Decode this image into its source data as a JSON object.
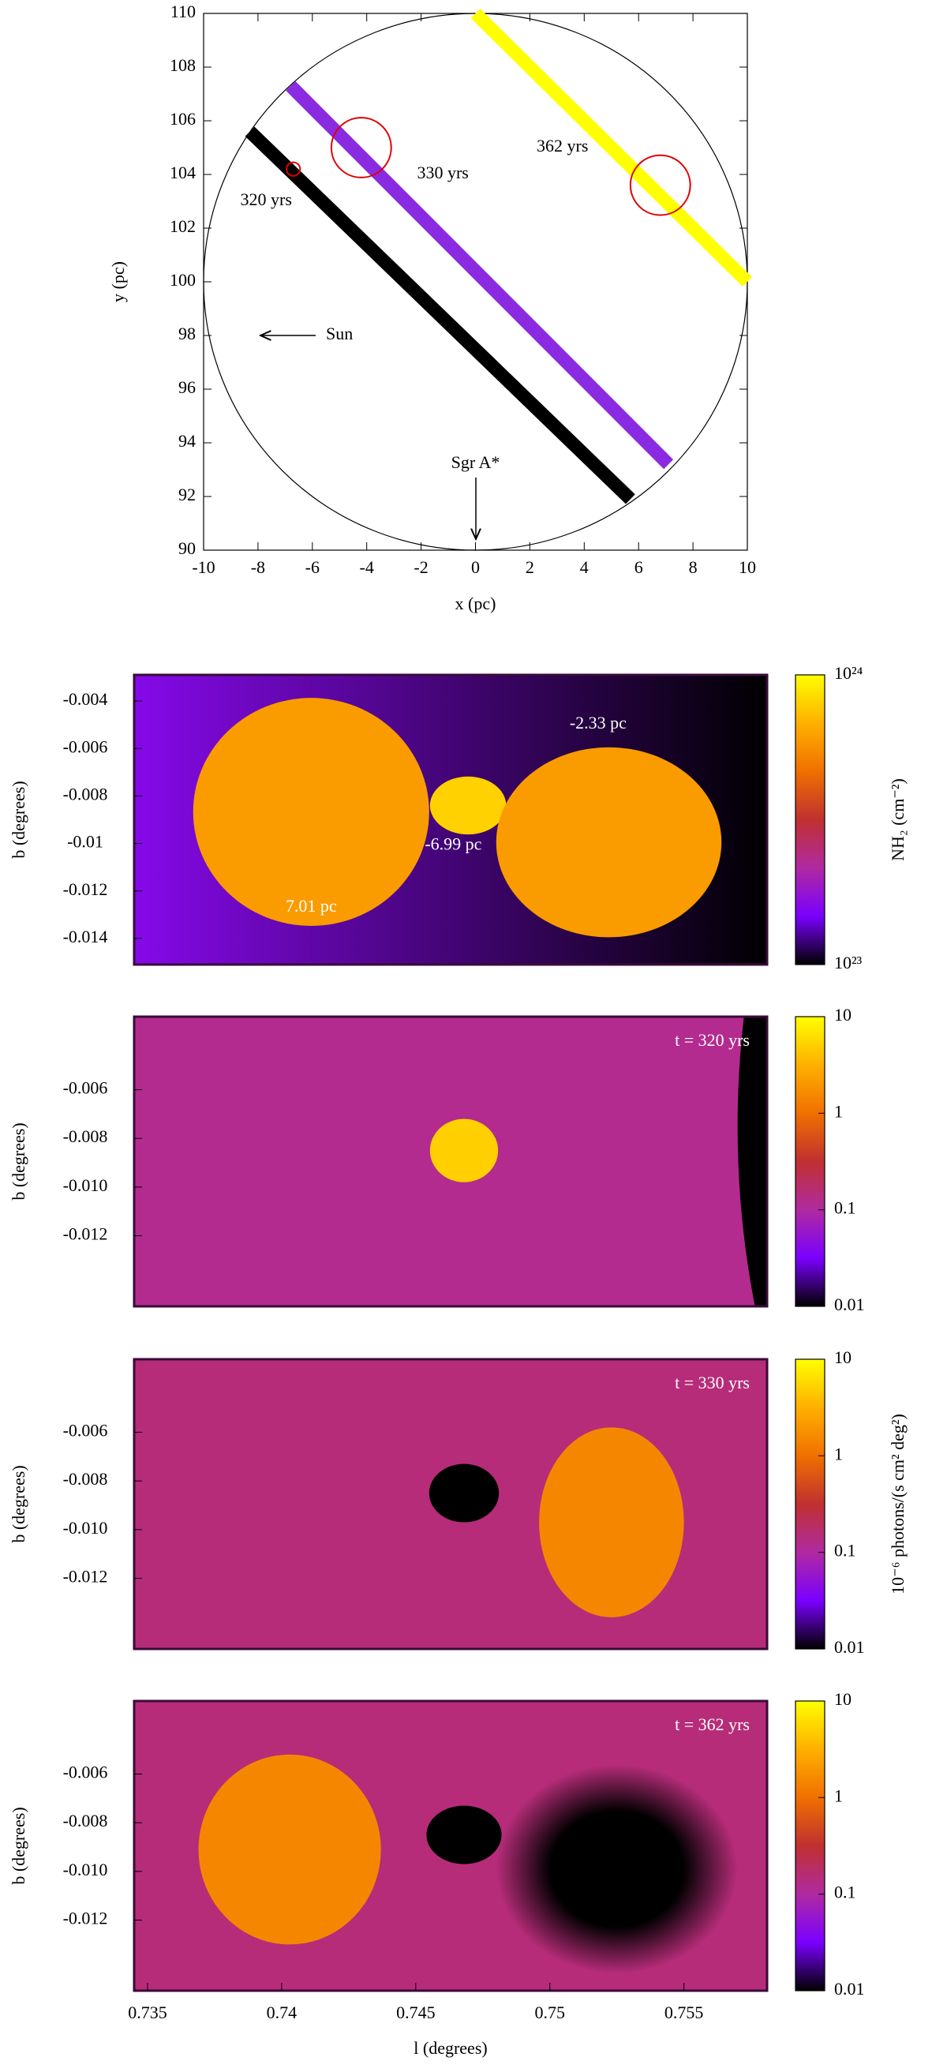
{
  "chart_data": [
    {
      "type": "line",
      "xlabel": "x (pc)",
      "ylabel": "y (pc)",
      "xlim": [
        -10,
        10
      ],
      "ylim": [
        90,
        110
      ],
      "xticks": [
        -10,
        -8,
        -6,
        -4,
        -2,
        0,
        2,
        4,
        6,
        8,
        10
      ],
      "yticks": [
        90,
        92,
        94,
        96,
        98,
        100,
        102,
        104,
        106,
        108,
        110
      ],
      "series": [
        {
          "color": "#000000",
          "x": [
            -8.3,
            5.7
          ],
          "values": [
            105.6,
            91.9
          ]
        },
        {
          "color": "#8a2be2",
          "x": [
            -6.8,
            7.1
          ],
          "values": [
            107.3,
            93.2
          ]
        },
        {
          "color": "#ffff00",
          "x": [
            0,
            10
          ],
          "values": [
            110,
            100
          ]
        }
      ],
      "markers": {
        "color": "#e00000",
        "points": [
          {
            "x": -4.2,
            "y": 105.0,
            "r": 1.1
          },
          {
            "x": 6.8,
            "y": 103.6,
            "r": 1.1
          },
          {
            "x": -6.7,
            "y": 104.2,
            "r": 0.25
          }
        ]
      },
      "annotations": [
        {
          "text": "320 yrs",
          "x": -7.7,
          "y": 103.0
        },
        {
          "text": "330 yrs",
          "x": -1.2,
          "y": 104.0
        },
        {
          "text": "362 yrs",
          "x": 3.2,
          "y": 105.0
        },
        {
          "text": "Sun",
          "x": -5.5,
          "y": 98.0
        },
        {
          "text": "Sgr A*",
          "x": 0,
          "y": 93.2
        }
      ]
    },
    {
      "type": "heatmap",
      "ylabel": "b (degrees)",
      "xlim": [
        0.7345,
        0.7581
      ],
      "ylim": [
        -0.0151,
        -0.0029
      ],
      "yticks": [
        -0.004,
        -0.006,
        -0.008,
        -0.01,
        -0.012,
        -0.014
      ],
      "colormap": [
        "#000000",
        "#7a00ff",
        "#b02aa0",
        "#c03030",
        "#f07000",
        "#ffb000",
        "#ffff00"
      ],
      "background": [
        1.6e+23,
        1e+23
      ],
      "features": [
        {
          "l": 0.7411,
          "b": -0.00867,
          "rl": 0.0044,
          "rb": 0.0048,
          "value": 6e+23
        },
        {
          "l": 0.74695,
          "b": -0.0084,
          "rl": 0.00142,
          "rb": 0.00122,
          "value": 8e+23
        },
        {
          "l": 0.7522,
          "b": -0.00995,
          "rl": 0.0042,
          "rb": 0.004,
          "value": 6e+23
        }
      ],
      "annotations": [
        {
          "text": "7.01 pc",
          "l": 0.7411,
          "b": -0.0127
        },
        {
          "text": "-6.99 pc",
          "l": 0.7464,
          "b": -0.0101
        },
        {
          "text": "-2.33 pc",
          "l": 0.7518,
          "b": -0.005
        }
      ],
      "colorbar": {
        "scale": "log",
        "clim": [
          1e+23,
          1e+24
        ],
        "ticks": [
          {
            "value": 1e+23,
            "label": "10²³"
          },
          {
            "value": 1e+24,
            "label": "10²⁴"
          }
        ],
        "label": "NH₂ (cm⁻²)"
      }
    },
    {
      "type": "heatmap",
      "ylabel": "b (degrees)",
      "title": "t = 320 yrs",
      "xlim": [
        0.7345,
        0.7581
      ],
      "ylim": [
        -0.0149,
        -0.003
      ],
      "yticks": [
        -0.006,
        -0.008,
        {
          "value": -0.01,
          "label": "-0.010"
        },
        -0.012
      ],
      "colormap": [
        "#000000",
        "#7a00ff",
        "#b02aa0",
        "#c03030",
        "#f07000",
        "#ffb000",
        "#ffff00"
      ],
      "background": [
        0.12,
        0.12
      ],
      "features": [
        {
          "l": 0.7468,
          "b": -0.0085,
          "rl": 0.00127,
          "rb": 0.0013,
          "value": 5
        },
        {
          "l": 0.778,
          "b": -0.0075,
          "rl": 0.021,
          "rb": 0.03,
          "value": 0.01
        }
      ],
      "colorbar": {
        "scale": "log",
        "clim": [
          0.01,
          10
        ],
        "ticks": [
          0.01,
          0.1,
          1,
          10
        ]
      }
    },
    {
      "type": "heatmap",
      "ylabel": "b (degrees)",
      "title": "t = 330 yrs",
      "xlim": [
        0.7345,
        0.7581
      ],
      "ylim": [
        -0.0149,
        -0.003
      ],
      "yticks": [
        -0.006,
        -0.008,
        {
          "value": -0.01,
          "label": "-0.010"
        },
        -0.012
      ],
      "colormap": [
        "#000000",
        "#7a00ff",
        "#b02aa0",
        "#c03030",
        "#f07000",
        "#ffb000",
        "#ffff00"
      ],
      "background": [
        0.15,
        0.15
      ],
      "features": [
        {
          "l": 0.7468,
          "b": -0.0085,
          "rl": 0.0013,
          "rb": 0.0012,
          "value": 0.01
        },
        {
          "l": 0.7523,
          "b": -0.0097,
          "rl": 0.0027,
          "rb": 0.0039,
          "value": 1.5
        }
      ],
      "colorbar": {
        "scale": "log",
        "clim": [
          0.01,
          10
        ],
        "ticks": [
          0.01,
          0.1,
          1,
          10
        ],
        "label": "10⁻⁶ photons/(s cm² deg²)"
      }
    },
    {
      "type": "heatmap",
      "ylabel": "b (degrees)",
      "xlabel": "l (degrees)",
      "title": "t = 362 yrs",
      "xlim": [
        0.7345,
        0.7581
      ],
      "ylim": [
        -0.0149,
        -0.003
      ],
      "xticks": [
        0.735,
        0.74,
        0.745,
        0.75,
        0.755
      ],
      "yticks": [
        -0.006,
        -0.008,
        {
          "value": -0.01,
          "label": "-0.010"
        },
        -0.012
      ],
      "colormap": [
        "#000000",
        "#7a00ff",
        "#b02aa0",
        "#c03030",
        "#f07000",
        "#ffb000",
        "#ffff00"
      ],
      "background": [
        0.15,
        0.15
      ],
      "features": [
        {
          "l": 0.7403,
          "b": -0.0091,
          "rl": 0.0034,
          "rb": 0.0039,
          "value": 1.5
        },
        {
          "l": 0.7468,
          "b": -0.0085,
          "rl": 0.0014,
          "rb": 0.0012,
          "value": 0.01
        },
        {
          "l": 0.7525,
          "b": -0.0099,
          "rl": 0.0045,
          "rb": 0.0043,
          "value": 0.01,
          "edge": "soft"
        }
      ],
      "colorbar": {
        "scale": "log",
        "clim": [
          0.01,
          10
        ],
        "ticks": [
          0.01,
          0.1,
          1,
          10
        ]
      }
    }
  ]
}
